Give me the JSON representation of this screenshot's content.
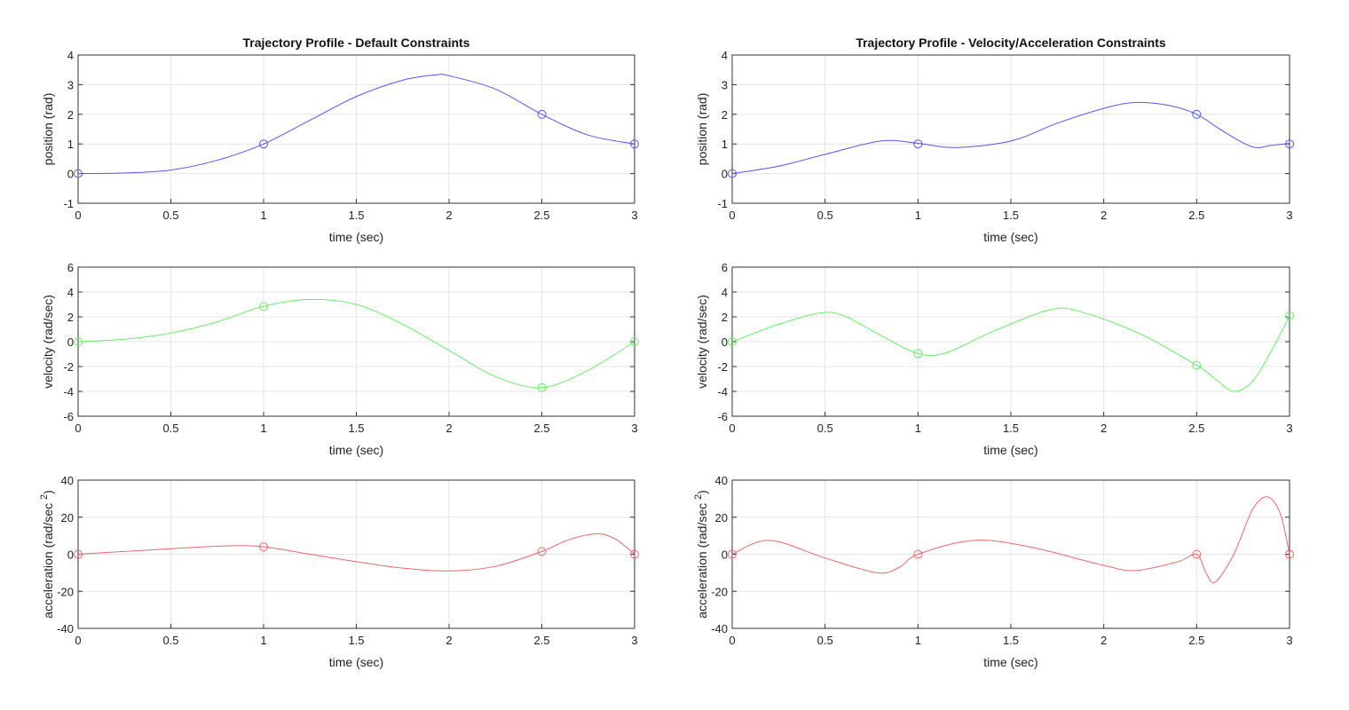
{
  "chart_data": [
    {
      "type": "line",
      "title": "Trajectory Profile - Default Constraints",
      "xlabel": "time (sec)",
      "ylabel": "position (rad)",
      "xlim": [
        0,
        3
      ],
      "ylim": [
        -1,
        4
      ],
      "xticks": [
        0,
        0.5,
        1,
        1.5,
        2,
        2.5,
        3
      ],
      "yticks": [
        -1,
        0,
        1,
        2,
        3,
        4
      ],
      "grid": true,
      "color": "#5555ff",
      "x": [
        0,
        0.25,
        0.5,
        0.75,
        1,
        1.25,
        1.5,
        1.75,
        1.93,
        2,
        2.25,
        2.5,
        2.75,
        3
      ],
      "y": [
        0,
        0.02,
        0.12,
        0.45,
        1,
        1.8,
        2.6,
        3.15,
        3.33,
        3.3,
        2.85,
        2,
        1.3,
        1
      ],
      "markers": {
        "x": [
          0,
          1,
          2.5,
          3
        ],
        "y": [
          0,
          1,
          2,
          1
        ]
      }
    },
    {
      "type": "line",
      "title": "Trajectory Profile - Velocity/Acceleration Constraints",
      "xlabel": "time (sec)",
      "ylabel": "position (rad)",
      "xlim": [
        0,
        3
      ],
      "ylim": [
        -1,
        4
      ],
      "xticks": [
        0,
        0.5,
        1,
        1.5,
        2,
        2.5,
        3
      ],
      "yticks": [
        -1,
        0,
        1,
        2,
        3,
        4
      ],
      "grid": true,
      "color": "#5555ff",
      "x": [
        0,
        0.25,
        0.5,
        0.8,
        1,
        1.2,
        1.5,
        1.75,
        2,
        2.17,
        2.35,
        2.5,
        2.65,
        2.8,
        2.9,
        3
      ],
      "y": [
        0,
        0.25,
        0.65,
        1.1,
        1.02,
        0.88,
        1.1,
        1.7,
        2.2,
        2.4,
        2.3,
        2,
        1.4,
        0.9,
        0.95,
        1.02
      ],
      "markers": {
        "x": [
          0,
          1,
          2.5,
          3
        ],
        "y": [
          0,
          1,
          2,
          1
        ]
      }
    },
    {
      "type": "line",
      "title": "",
      "xlabel": "time (sec)",
      "ylabel": "velocity (rad/sec)",
      "xlim": [
        0,
        3
      ],
      "ylim": [
        -6,
        6
      ],
      "xticks": [
        0,
        0.5,
        1,
        1.5,
        2,
        2.5,
        3
      ],
      "yticks": [
        -6,
        -4,
        -2,
        0,
        2,
        4,
        6
      ],
      "grid": true,
      "color": "#66ee66",
      "x": [
        0,
        0.25,
        0.5,
        0.75,
        1,
        1.25,
        1.5,
        1.75,
        2,
        2.25,
        2.5,
        2.75,
        3
      ],
      "y": [
        0,
        0.2,
        0.7,
        1.6,
        2.85,
        3.4,
        3.0,
        1.4,
        -0.7,
        -2.8,
        -3.7,
        -2.3,
        0
      ],
      "markers": {
        "x": [
          0,
          1,
          2.5,
          3
        ],
        "y": [
          0,
          2.85,
          -3.7,
          0
        ]
      }
    },
    {
      "type": "line",
      "title": "",
      "xlabel": "time (sec)",
      "ylabel": "velocity (rad/sec)",
      "xlim": [
        0,
        3
      ],
      "ylim": [
        -6,
        6
      ],
      "xticks": [
        0,
        0.5,
        1,
        1.5,
        2,
        2.5,
        3
      ],
      "yticks": [
        -6,
        -4,
        -2,
        0,
        2,
        4,
        6
      ],
      "grid": true,
      "color": "#66ee66",
      "x": [
        0,
        0.25,
        0.47,
        0.6,
        0.8,
        1,
        1.15,
        1.4,
        1.72,
        1.9,
        2.2,
        2.5,
        2.6,
        2.7,
        2.8,
        2.9,
        3
      ],
      "y": [
        0,
        1.4,
        2.3,
        2.1,
        0.5,
        -0.95,
        -0.9,
        0.8,
        2.6,
        2.3,
        0.6,
        -1.9,
        -3.0,
        -4.0,
        -3.2,
        -0.8,
        2.1
      ],
      "markers": {
        "x": [
          0,
          1,
          2.5,
          3
        ],
        "y": [
          0,
          -0.95,
          -1.9,
          2.1
        ]
      }
    },
    {
      "type": "line",
      "title": "",
      "xlabel": "time (sec)",
      "ylabel": "acceleration (rad/sec^2)",
      "xlim": [
        0,
        3
      ],
      "ylim": [
        -40,
        40
      ],
      "xticks": [
        0,
        0.5,
        1,
        1.5,
        2,
        2.5,
        3
      ],
      "yticks": [
        -40,
        -20,
        0,
        20,
        40
      ],
      "grid": true,
      "color": "#ee6666",
      "x": [
        0,
        0.25,
        0.5,
        0.8,
        1,
        1.25,
        1.5,
        1.75,
        2,
        2.25,
        2.5,
        2.65,
        2.8,
        2.9,
        3
      ],
      "y": [
        0,
        1.5,
        3,
        4.5,
        4,
        0,
        -4,
        -7.5,
        -9,
        -6.5,
        1.5,
        8,
        11,
        8,
        0
      ],
      "markers": {
        "x": [
          0,
          1,
          2.5,
          3
        ],
        "y": [
          0,
          4,
          1.5,
          0
        ]
      }
    },
    {
      "type": "line",
      "title": "",
      "xlabel": "time (sec)",
      "ylabel": "acceleration (rad/sec^2)",
      "xlim": [
        0,
        3
      ],
      "ylim": [
        -40,
        40
      ],
      "xticks": [
        0,
        0.5,
        1,
        1.5,
        2,
        2.5,
        3
      ],
      "yticks": [
        -40,
        -20,
        0,
        20,
        40
      ],
      "grid": true,
      "color": "#ee6666",
      "x": [
        0,
        0.2,
        0.5,
        0.78,
        0.9,
        1,
        1.3,
        1.6,
        2,
        2.17,
        2.4,
        2.5,
        2.55,
        2.6,
        2.7,
        2.8,
        2.88,
        2.95,
        3
      ],
      "y": [
        0,
        7.5,
        -2,
        -10,
        -7,
        0,
        7.5,
        4,
        -6,
        -8.8,
        -4,
        0,
        -10,
        -15,
        0,
        24,
        31,
        22,
        0
      ],
      "markers": {
        "x": [
          0,
          1,
          2.5,
          3
        ],
        "y": [
          0,
          0,
          0,
          0
        ]
      }
    }
  ]
}
